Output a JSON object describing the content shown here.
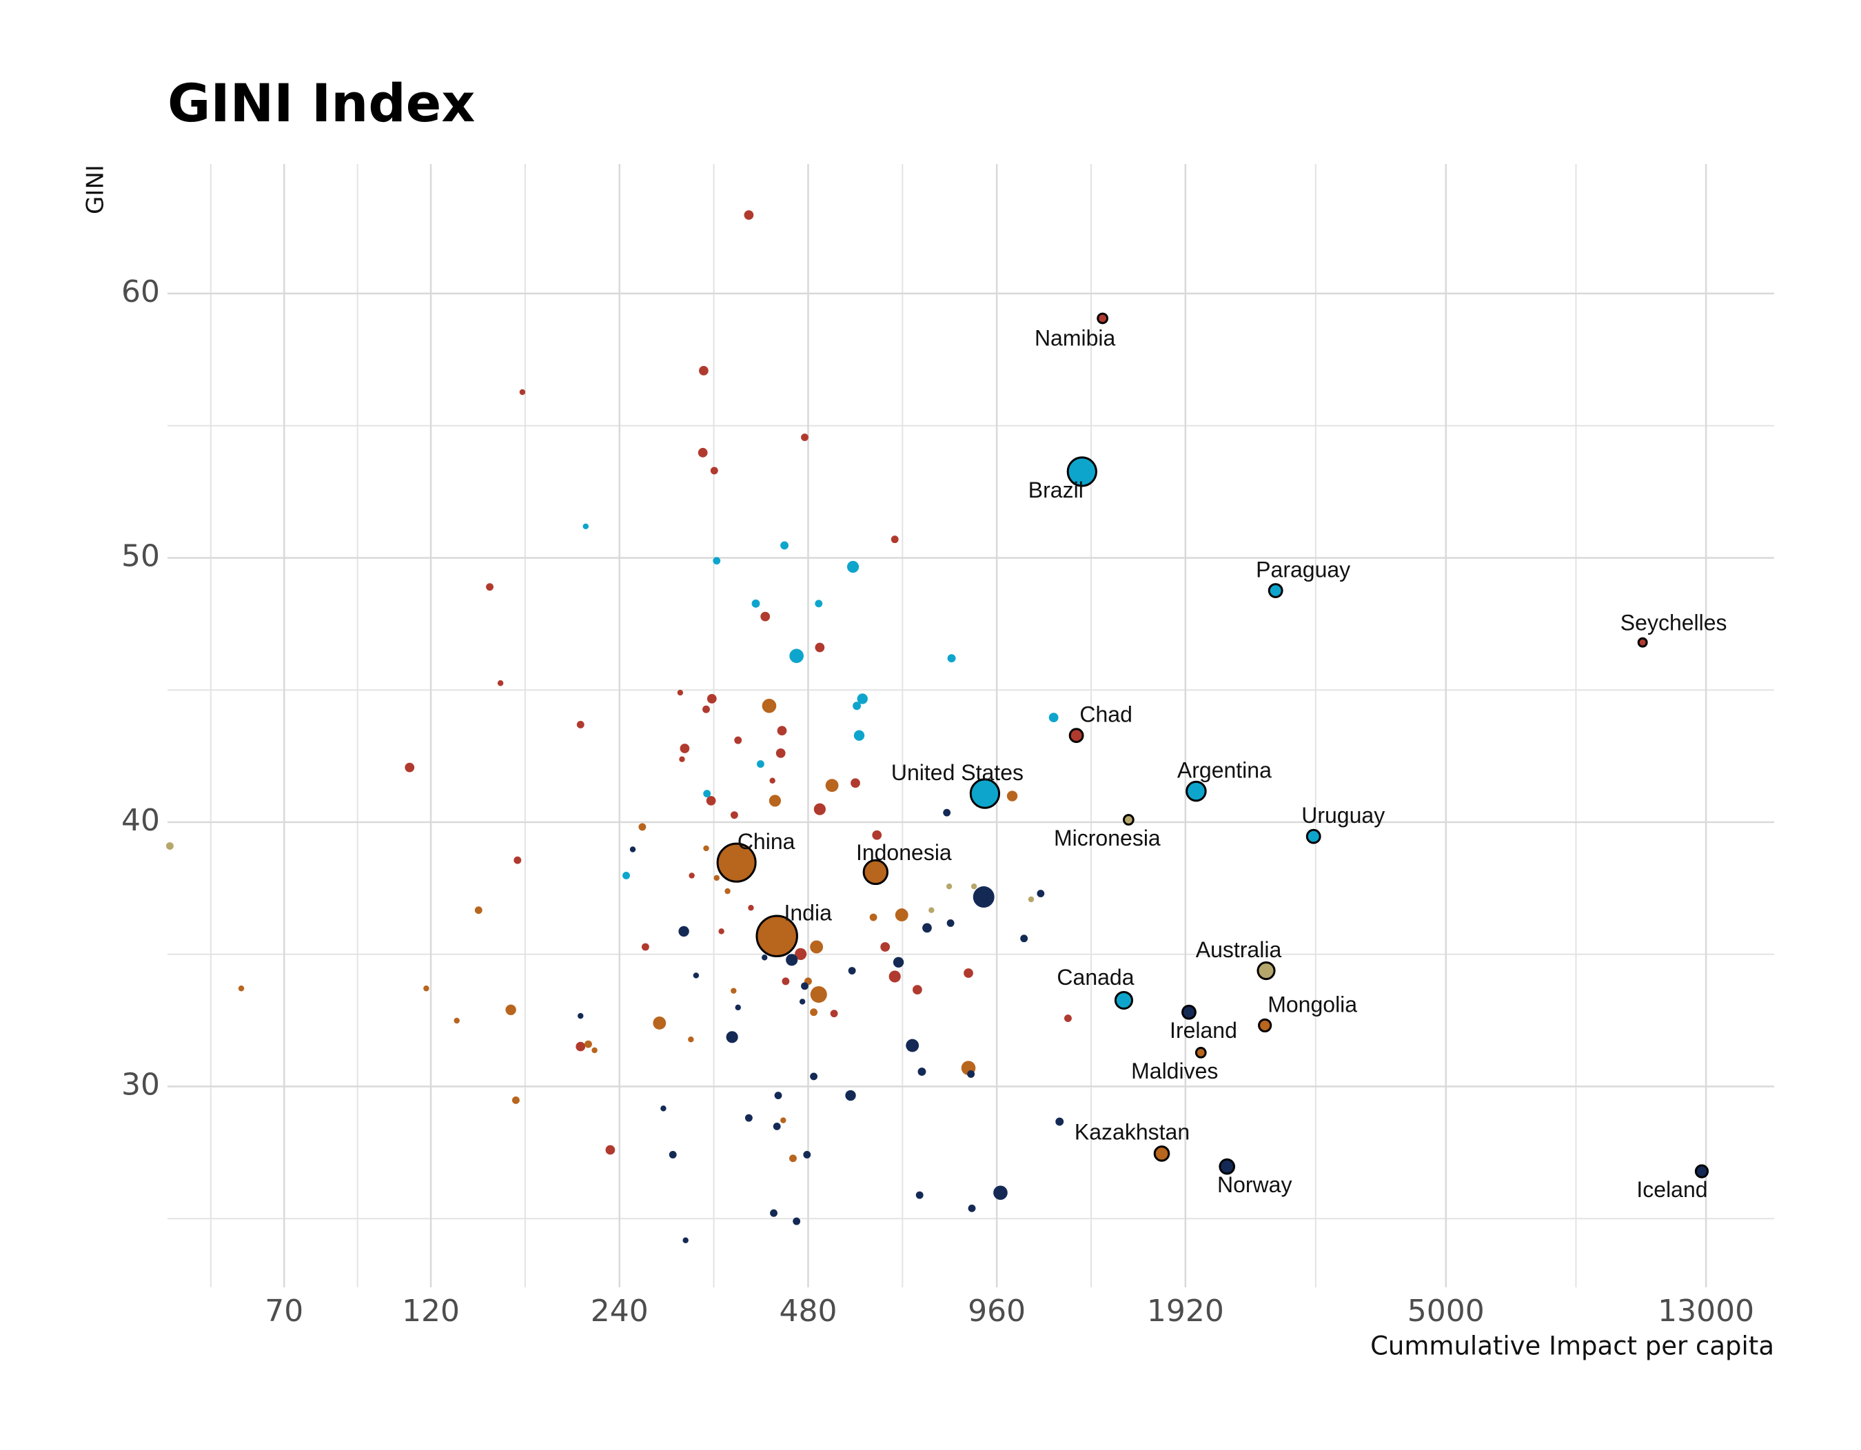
{
  "chart_data": {
    "type": "scatter",
    "title": "GINI Index",
    "ylabel": "GINI",
    "xlabel": "Cummulative Impact per capita",
    "xlog": true,
    "grid": true,
    "xlim": [
      45.6,
      16700
    ],
    "xticks": [
      70,
      120,
      240,
      480,
      960,
      1920,
      5000,
      13000
    ],
    "ylim": [
      22.4,
      64.9
    ],
    "yticks": [
      30,
      40,
      50,
      60
    ],
    "series": [
      {
        "color": "#b03a2e",
        "points": [
          {
            "x": 1416,
            "y": 59.06,
            "size": 16,
            "label": "Namibia"
          },
          {
            "x": 10300,
            "y": 46.8,
            "size": 12,
            "label": "Seychelles"
          },
          {
            "x": 1286,
            "y": 43.28,
            "size": 30,
            "label": "Chad"
          },
          {
            "x": 386,
            "y": 62.97,
            "size": 16
          },
          {
            "x": 327,
            "y": 57.08,
            "size": 16
          },
          {
            "x": 168,
            "y": 56.27,
            "size": 6
          },
          {
            "x": 326,
            "y": 53.98,
            "size": 16
          },
          {
            "x": 340,
            "y": 53.3,
            "size": 10
          },
          {
            "x": 474,
            "y": 54.56,
            "size": 10
          },
          {
            "x": 660,
            "y": 50.7,
            "size": 10
          },
          {
            "x": 149,
            "y": 48.9,
            "size": 10
          },
          {
            "x": 410,
            "y": 47.78,
            "size": 16
          },
          {
            "x": 501,
            "y": 46.61,
            "size": 16
          },
          {
            "x": 155,
            "y": 45.26,
            "size": 6
          },
          {
            "x": 300,
            "y": 44.9,
            "size": 6
          },
          {
            "x": 337,
            "y": 44.67,
            "size": 16
          },
          {
            "x": 330,
            "y": 44.27,
            "size": 10
          },
          {
            "x": 208,
            "y": 43.69,
            "size": 10
          },
          {
            "x": 436,
            "y": 43.46,
            "size": 16
          },
          {
            "x": 371,
            "y": 43.1,
            "size": 10
          },
          {
            "x": 305,
            "y": 42.79,
            "size": 16
          },
          {
            "x": 434,
            "y": 42.61,
            "size": 16
          },
          {
            "x": 111,
            "y": 42.07,
            "size": 16
          },
          {
            "x": 302,
            "y": 42.38,
            "size": 6
          },
          {
            "x": 421,
            "y": 41.57,
            "size": 6
          },
          {
            "x": 571,
            "y": 41.48,
            "size": 16
          },
          {
            "x": 336,
            "y": 40.81,
            "size": 16
          },
          {
            "x": 501,
            "y": 40.49,
            "size": 25
          },
          {
            "x": 366,
            "y": 40.27,
            "size": 10
          },
          {
            "x": 618,
            "y": 39.51,
            "size": 16
          },
          {
            "x": 165,
            "y": 38.56,
            "size": 10
          },
          {
            "x": 313,
            "y": 37.98,
            "size": 6
          },
          {
            "x": 389,
            "y": 36.76,
            "size": 6
          },
          {
            "x": 349,
            "y": 35.87,
            "size": 6
          },
          {
            "x": 264,
            "y": 35.28,
            "size": 10
          },
          {
            "x": 467,
            "y": 35.01,
            "size": 25
          },
          {
            "x": 637,
            "y": 35.28,
            "size": 16
          },
          {
            "x": 442,
            "y": 33.98,
            "size": 10
          },
          {
            "x": 660,
            "y": 34.16,
            "size": 25
          },
          {
            "x": 717,
            "y": 33.66,
            "size": 16
          },
          {
            "x": 865,
            "y": 34.29,
            "size": 16
          },
          {
            "x": 528,
            "y": 32.76,
            "size": 10
          },
          {
            "x": 1247,
            "y": 32.58,
            "size": 10
          },
          {
            "x": 208,
            "y": 31.51,
            "size": 16
          },
          {
            "x": 232,
            "y": 27.6,
            "size": 16
          }
        ]
      },
      {
        "color": "#b8651e",
        "points": [
          {
            "x": 369,
            "y": 38.47,
            "size": 256,
            "label": "China"
          },
          {
            "x": 615,
            "y": 38.11,
            "size": 100,
            "label": "Indonesia"
          },
          {
            "x": 428,
            "y": 35.69,
            "size": 289,
            "label": "India"
          },
          {
            "x": 2571,
            "y": 32.31,
            "size": 25,
            "label": "Mongolia"
          },
          {
            "x": 2032,
            "y": 31.28,
            "size": 16,
            "label": "Maldives"
          },
          {
            "x": 1760,
            "y": 27.46,
            "size": 36,
            "label": "Kazakhstan"
          },
          {
            "x": 59.8,
            "y": 33.71,
            "size": 6
          },
          {
            "x": 118,
            "y": 33.71,
            "size": 6
          },
          {
            "x": 132,
            "y": 32.49,
            "size": 6
          },
          {
            "x": 143,
            "y": 36.67,
            "size": 10
          },
          {
            "x": 161,
            "y": 32.9,
            "size": 20
          },
          {
            "x": 164,
            "y": 29.48,
            "size": 10
          },
          {
            "x": 214,
            "y": 31.6,
            "size": 10
          },
          {
            "x": 219,
            "y": 31.37,
            "size": 6
          },
          {
            "x": 261,
            "y": 39.82,
            "size": 10
          },
          {
            "x": 278,
            "y": 32.4,
            "size": 30
          },
          {
            "x": 312,
            "y": 31.78,
            "size": 6
          },
          {
            "x": 330,
            "y": 39.01,
            "size": 6
          },
          {
            "x": 343,
            "y": 37.89,
            "size": 6
          },
          {
            "x": 357,
            "y": 37.39,
            "size": 6
          },
          {
            "x": 365,
            "y": 33.62,
            "size": 6
          },
          {
            "x": 416,
            "y": 44.4,
            "size": 36
          },
          {
            "x": 425,
            "y": 40.81,
            "size": 25
          },
          {
            "x": 438,
            "y": 28.72,
            "size": 6
          },
          {
            "x": 454,
            "y": 27.28,
            "size": 10
          },
          {
            "x": 480,
            "y": 33.98,
            "size": 10
          },
          {
            "x": 490,
            "y": 32.81,
            "size": 10
          },
          {
            "x": 495,
            "y": 35.28,
            "size": 30
          },
          {
            "x": 499,
            "y": 33.48,
            "size": 49
          },
          {
            "x": 524,
            "y": 41.39,
            "size": 30
          },
          {
            "x": 610,
            "y": 36.4,
            "size": 10
          },
          {
            "x": 677,
            "y": 36.49,
            "size": 30
          },
          {
            "x": 865,
            "y": 30.7,
            "size": 36
          },
          {
            "x": 1016,
            "y": 40.99,
            "size": 20
          }
        ]
      },
      {
        "color": "#b5a66b",
        "points": [
          {
            "x": 1558,
            "y": 40.09,
            "size": 16,
            "label": "Micronesia"
          },
          {
            "x": 2583,
            "y": 34.38,
            "size": 49,
            "label": "Australia"
          },
          {
            "x": 46,
            "y": 39.1,
            "size": 10
          },
          {
            "x": 755,
            "y": 36.67,
            "size": 6
          },
          {
            "x": 806,
            "y": 37.57,
            "size": 6
          },
          {
            "x": 883,
            "y": 37.57,
            "size": 6
          },
          {
            "x": 1089,
            "y": 37.08,
            "size": 6
          }
        ]
      },
      {
        "color": "#0ea5cc",
        "points": [
          {
            "x": 1313,
            "y": 53.26,
            "size": 144,
            "label": "Brazil"
          },
          {
            "x": 2674,
            "y": 48.76,
            "size": 30,
            "label": "Paraguay"
          },
          {
            "x": 919,
            "y": 41.08,
            "size": 144,
            "label": "United States"
          },
          {
            "x": 1997,
            "y": 41.17,
            "size": 64,
            "label": "Argentina"
          },
          {
            "x": 3074,
            "y": 39.46,
            "size": 30,
            "label": "Uruguay"
          },
          {
            "x": 1531,
            "y": 33.26,
            "size": 49,
            "label": "Canada"
          },
          {
            "x": 212,
            "y": 51.19,
            "size": 6
          },
          {
            "x": 343,
            "y": 49.89,
            "size": 10
          },
          {
            "x": 440,
            "y": 50.47,
            "size": 12
          },
          {
            "x": 566,
            "y": 49.66,
            "size": 25
          },
          {
            "x": 396,
            "y": 48.27,
            "size": 12
          },
          {
            "x": 499,
            "y": 48.27,
            "size": 10
          },
          {
            "x": 460,
            "y": 46.29,
            "size": 36
          },
          {
            "x": 813,
            "y": 46.2,
            "size": 12
          },
          {
            "x": 586,
            "y": 44.67,
            "size": 20
          },
          {
            "x": 574,
            "y": 44.4,
            "size": 12
          },
          {
            "x": 1183,
            "y": 43.96,
            "size": 16
          },
          {
            "x": 579,
            "y": 43.28,
            "size": 20
          },
          {
            "x": 403,
            "y": 42.2,
            "size": 10
          },
          {
            "x": 331,
            "y": 41.08,
            "size": 10
          },
          {
            "x": 246,
            "y": 37.98,
            "size": 10
          }
        ]
      },
      {
        "color": "#142a55",
        "points": [
          {
            "x": 1945,
            "y": 32.81,
            "size": 30,
            "label": "Ireland"
          },
          {
            "x": 2237,
            "y": 26.97,
            "size": 36,
            "label": "Norway"
          },
          {
            "x": 12800,
            "y": 26.79,
            "size": 25,
            "label": "Iceland"
          },
          {
            "x": 252,
            "y": 38.97,
            "size": 6
          },
          {
            "x": 799,
            "y": 40.36,
            "size": 10
          },
          {
            "x": 1128,
            "y": 37.3,
            "size": 10
          },
          {
            "x": 915,
            "y": 37.17,
            "size": 81
          },
          {
            "x": 810,
            "y": 36.18,
            "size": 10
          },
          {
            "x": 743,
            "y": 36.0,
            "size": 16
          },
          {
            "x": 1061,
            "y": 35.6,
            "size": 10
          },
          {
            "x": 304,
            "y": 35.87,
            "size": 20
          },
          {
            "x": 669,
            "y": 34.7,
            "size": 20
          },
          {
            "x": 452,
            "y": 34.79,
            "size": 25
          },
          {
            "x": 409,
            "y": 34.88,
            "size": 6
          },
          {
            "x": 564,
            "y": 34.38,
            "size": 10
          },
          {
            "x": 318,
            "y": 34.2,
            "size": 6
          },
          {
            "x": 474,
            "y": 33.8,
            "size": 10
          },
          {
            "x": 470,
            "y": 33.21,
            "size": 6
          },
          {
            "x": 371,
            "y": 32.99,
            "size": 6
          },
          {
            "x": 208,
            "y": 32.67,
            "size": 6
          },
          {
            "x": 363,
            "y": 31.87,
            "size": 25
          },
          {
            "x": 704,
            "y": 31.55,
            "size": 30
          },
          {
            "x": 729,
            "y": 30.56,
            "size": 12
          },
          {
            "x": 490,
            "y": 30.38,
            "size": 10
          },
          {
            "x": 873,
            "y": 30.47,
            "size": 10
          },
          {
            "x": 561,
            "y": 29.66,
            "size": 20
          },
          {
            "x": 430,
            "y": 29.66,
            "size": 10
          },
          {
            "x": 282,
            "y": 29.17,
            "size": 6
          },
          {
            "x": 386,
            "y": 28.81,
            "size": 10
          },
          {
            "x": 428,
            "y": 28.49,
            "size": 10
          },
          {
            "x": 1209,
            "y": 28.67,
            "size": 12
          },
          {
            "x": 292,
            "y": 27.42,
            "size": 10
          },
          {
            "x": 478,
            "y": 27.42,
            "size": 10
          },
          {
            "x": 973,
            "y": 25.98,
            "size": 36
          },
          {
            "x": 723,
            "y": 25.89,
            "size": 10
          },
          {
            "x": 423,
            "y": 25.21,
            "size": 10
          },
          {
            "x": 460,
            "y": 24.9,
            "size": 10
          },
          {
            "x": 876,
            "y": 25.39,
            "size": 10
          },
          {
            "x": 306,
            "y": 24.18,
            "size": 6
          }
        ]
      }
    ]
  }
}
